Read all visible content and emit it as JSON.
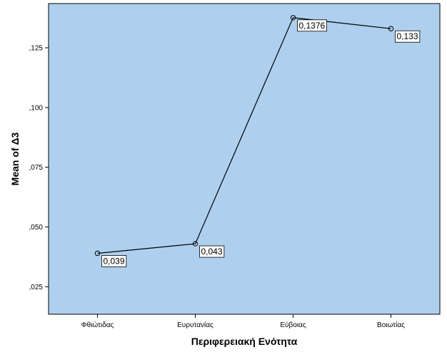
{
  "chart_data": {
    "type": "line",
    "title": "",
    "xlabel": "Περιφερειακή Ενότητα",
    "ylabel": "Mean of Δ3",
    "categories": [
      "Φθιώτιδας",
      "Ευρυτανίας",
      "Εύβοιας",
      "Βοιωτίας"
    ],
    "series": [
      {
        "values": [
          0.039,
          0.043,
          0.1376,
          0.133
        ],
        "data_labels": [
          "0,039",
          "0,043",
          "0,1376",
          "0,133"
        ]
      }
    ],
    "yticks": [
      0.025,
      0.05,
      0.075,
      0.1,
      0.125
    ],
    "ytick_labels": [
      ",025",
      ",050",
      ",075",
      ",100",
      ",125"
    ],
    "ylim": [
      0.0135,
      0.1435
    ],
    "grid": false,
    "legend": "none",
    "colors": {
      "plot_background": "#aed0ee",
      "line": "#000000",
      "frame": "#000000",
      "label_box": "#ffffff"
    }
  }
}
